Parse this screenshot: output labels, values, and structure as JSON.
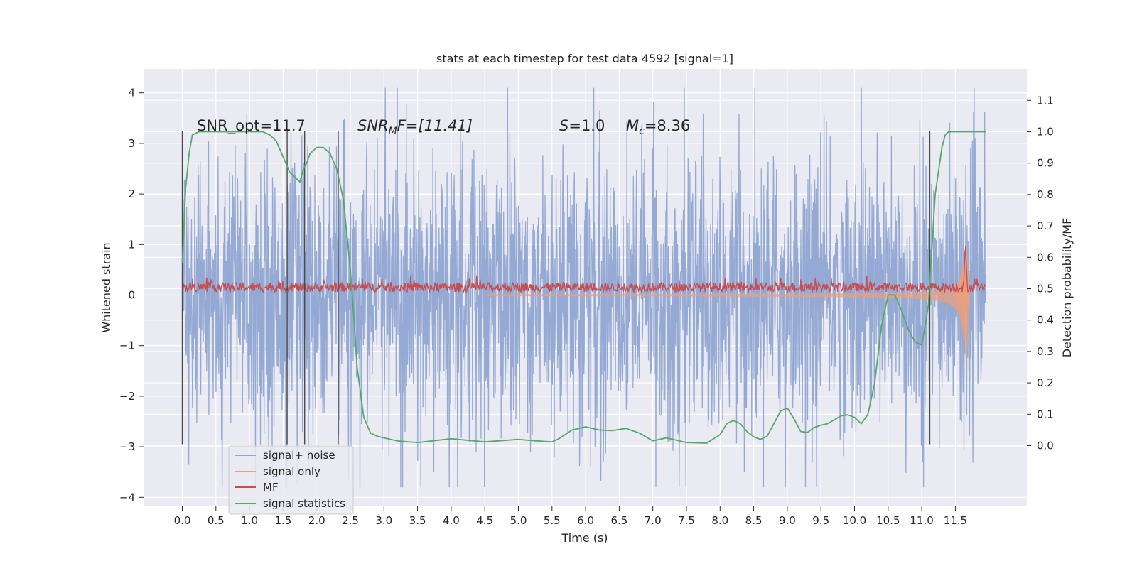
{
  "chart_data": {
    "type": "line",
    "title": "stats at each timestep for test data 4592 [signal=1]",
    "xlabel": "Time (s)",
    "ylabel_left": "Whitened strain",
    "ylabel_right": "Detection probability/MF",
    "xlim": [
      -0.5,
      12.6
    ],
    "ylim_left": [
      -4.2,
      4.45
    ],
    "ylim_right": [
      -0.18,
      1.2
    ],
    "x_ticks": [
      "0.0",
      "0.5",
      "1.0",
      "1.5",
      "2.0",
      "2.5",
      "3.0",
      "3.5",
      "4.0",
      "4.5",
      "5.0",
      "5.5",
      "6.0",
      "6.5",
      "7.0",
      "7.5",
      "8.0",
      "8.5",
      "9.0",
      "9.5",
      "10.0",
      "10.5",
      "11.0",
      "11.5"
    ],
    "y_ticks_left": [
      "4",
      "3",
      "2",
      "1",
      "0",
      "−1",
      "−2",
      "−3",
      "−4"
    ],
    "y_ticks_right": [
      "1.1",
      "1.0",
      "0.9",
      "0.8",
      "0.7",
      "0.6",
      "0.5",
      "0.4",
      "0.3",
      "0.2",
      "0.1",
      "0.0"
    ],
    "grid": true,
    "legend_position": "lower-left",
    "annotations": {
      "snr_opt": "SNR_opt=11.7",
      "snr_mf_sym": "SNR",
      "snr_mf_sub": "M",
      "snr_mf_rest": "F=[11.41]",
      "s_sym": "S",
      "s_val": "=1.0",
      "mc_sym": "M",
      "mc_sub": "c",
      "mc_val": "=8.36"
    },
    "vertical_markers_s": [
      0.0,
      1.56,
      1.82,
      2.32,
      11.12
    ],
    "series": [
      {
        "name": "signal+ noise",
        "color": "#8fa5d1",
        "axis": "left",
        "amplitude_range": [
          -3.8,
          4.1
        ],
        "x_range": [
          0.0,
          11.95
        ]
      },
      {
        "name": "signal only",
        "color": "#e8a080",
        "axis": "left",
        "peak_time": 11.65,
        "peak_amplitude": 1.4
      },
      {
        "name": "MF",
        "color": "#c44e52",
        "axis": "right",
        "baseline": 0.5,
        "peak_time": 11.65,
        "peak_value": 0.64
      },
      {
        "name": "signal statistics",
        "color": "#55a868",
        "axis": "right",
        "x": [
          0.0,
          0.05,
          0.1,
          0.15,
          0.25,
          0.4,
          0.6,
          0.8,
          1.0,
          1.2,
          1.3,
          1.4,
          1.5,
          1.6,
          1.7,
          1.75,
          1.8,
          1.85,
          1.9,
          2.0,
          2.1,
          2.2,
          2.3,
          2.4,
          2.5,
          2.55,
          2.6,
          2.7,
          2.8,
          2.9,
          3.0,
          3.2,
          3.5,
          4.0,
          4.5,
          5.0,
          5.2,
          5.5,
          5.6,
          5.8,
          6.0,
          6.2,
          6.4,
          6.6,
          6.8,
          7.0,
          7.2,
          7.5,
          7.8,
          8.0,
          8.1,
          8.2,
          8.3,
          8.4,
          8.5,
          8.6,
          8.7,
          8.8,
          8.9,
          9.0,
          9.1,
          9.2,
          9.3,
          9.4,
          9.5,
          9.6,
          9.8,
          9.9,
          10.0,
          10.1,
          10.2,
          10.3,
          10.4,
          10.5,
          10.6,
          10.7,
          10.8,
          10.9,
          11.0,
          11.05,
          11.1,
          11.2,
          11.3,
          11.35,
          11.4,
          11.5,
          11.7,
          11.95
        ],
        "y": [
          0.58,
          0.82,
          0.93,
          0.99,
          1.0,
          1.0,
          1.0,
          1.0,
          1.0,
          1.0,
          0.99,
          0.97,
          0.92,
          0.87,
          0.85,
          0.84,
          0.88,
          0.9,
          0.93,
          0.95,
          0.95,
          0.93,
          0.88,
          0.78,
          0.56,
          0.42,
          0.25,
          0.09,
          0.04,
          0.03,
          0.025,
          0.015,
          0.01,
          0.022,
          0.012,
          0.02,
          0.016,
          0.012,
          0.022,
          0.05,
          0.06,
          0.05,
          0.048,
          0.055,
          0.04,
          0.015,
          0.025,
          0.01,
          0.008,
          0.035,
          0.07,
          0.08,
          0.07,
          0.045,
          0.028,
          0.02,
          0.03,
          0.07,
          0.11,
          0.12,
          0.085,
          0.045,
          0.042,
          0.058,
          0.065,
          0.07,
          0.095,
          0.098,
          0.09,
          0.07,
          0.1,
          0.2,
          0.38,
          0.48,
          0.48,
          0.43,
          0.37,
          0.33,
          0.32,
          0.38,
          0.45,
          0.8,
          0.95,
          0.99,
          1.0,
          1.0,
          1.0,
          1.0
        ]
      }
    ]
  }
}
